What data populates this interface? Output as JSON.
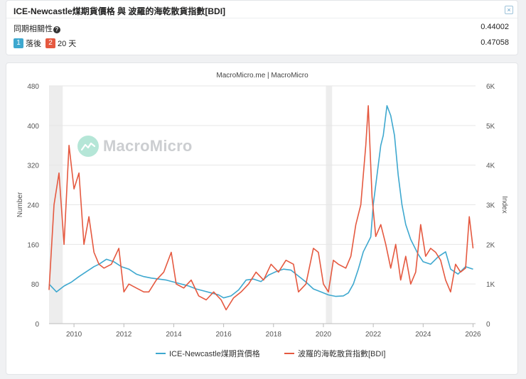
{
  "correlation_panel": {
    "title": "ICE-Newcastle煤期貨價格 與 波羅的海乾散貨指數[BDI]",
    "close_icon": "×",
    "corr_label": "同期相關性",
    "help_icon": "?",
    "corr_value": "0.44002",
    "lag_badge_1": "1",
    "lag_text_1": "落後",
    "lag_badge_2": "2",
    "lag_text_2": "20 天",
    "lag_value": "0.47058"
  },
  "chart_data": {
    "type": "line",
    "title": "MacroMicro.me | MacroMicro",
    "watermark": "MacroMicro",
    "ylabel": "Number",
    "y2label": "Index",
    "ylim": [
      0,
      480
    ],
    "y2lim": [
      0,
      6000
    ],
    "y_ticks": [
      "0",
      "80",
      "160",
      "240",
      "320",
      "400",
      "480"
    ],
    "y2_ticks": [
      "0",
      "1K",
      "2K",
      "3K",
      "4K",
      "5K",
      "6K"
    ],
    "x_ticks": [
      "2010",
      "2012",
      "2014",
      "2016",
      "2018",
      "2020",
      "2022",
      "2024",
      "2026"
    ],
    "xlim": [
      2009.0,
      2026.1
    ],
    "shaded_periods": [
      [
        2009.0,
        2009.55
      ],
      [
        2020.1,
        2020.35
      ]
    ],
    "colors": {
      "coal": "#3ea8cf",
      "bdi": "#e55940"
    },
    "series": [
      {
        "name": "ICE-Newcastle煤期貨價格",
        "axis": "left",
        "color": "#3ea8cf",
        "x": [
          2009.0,
          2009.3,
          2009.6,
          2009.9,
          2010.2,
          2010.5,
          2010.8,
          2011.0,
          2011.3,
          2011.6,
          2011.9,
          2012.2,
          2012.5,
          2012.8,
          2013.1,
          2013.4,
          2013.7,
          2014.0,
          2014.3,
          2014.6,
          2014.9,
          2015.2,
          2015.5,
          2015.8,
          2016.0,
          2016.3,
          2016.6,
          2016.9,
          2017.2,
          2017.5,
          2017.8,
          2018.1,
          2018.4,
          2018.7,
          2019.0,
          2019.3,
          2019.6,
          2019.9,
          2020.2,
          2020.5,
          2020.8,
          2021.0,
          2021.2,
          2021.4,
          2021.6,
          2021.75,
          2021.9,
          2022.0,
          2022.15,
          2022.3,
          2022.4,
          2022.55,
          2022.7,
          2022.85,
          2023.0,
          2023.15,
          2023.3,
          2023.5,
          2023.8,
          2024.0,
          2024.3,
          2024.6,
          2024.9,
          2025.1,
          2025.4,
          2025.7,
          2026.0
        ],
        "values": [
          80,
          64,
          76,
          84,
          95,
          105,
          115,
          120,
          130,
          125,
          115,
          110,
          100,
          95,
          92,
          90,
          88,
          84,
          80,
          76,
          70,
          66,
          62,
          58,
          52,
          56,
          68,
          88,
          90,
          85,
          98,
          105,
          110,
          108,
          96,
          84,
          70,
          64,
          58,
          55,
          56,
          62,
          80,
          110,
          145,
          160,
          175,
          240,
          300,
          360,
          380,
          440,
          420,
          380,
          300,
          240,
          200,
          170,
          140,
          125,
          120,
          135,
          145,
          110,
          100,
          115,
          110
        ]
      },
      {
        "name": "波羅的海乾散貨指數[BDI]",
        "axis": "right",
        "color": "#e55940",
        "x": [
          2009.0,
          2009.2,
          2009.4,
          2009.6,
          2009.8,
          2010.0,
          2010.2,
          2010.4,
          2010.6,
          2010.8,
          2011.0,
          2011.2,
          2011.5,
          2011.8,
          2012.0,
          2012.2,
          2012.5,
          2012.8,
          2013.0,
          2013.3,
          2013.6,
          2013.9,
          2014.1,
          2014.4,
          2014.7,
          2015.0,
          2015.3,
          2015.6,
          2015.9,
          2016.1,
          2016.4,
          2016.7,
          2017.0,
          2017.3,
          2017.6,
          2017.9,
          2018.2,
          2018.5,
          2018.8,
          2019.0,
          2019.3,
          2019.6,
          2019.8,
          2020.0,
          2020.2,
          2020.4,
          2020.6,
          2020.9,
          2021.1,
          2021.3,
          2021.5,
          2021.7,
          2021.8,
          2021.95,
          2022.1,
          2022.3,
          2022.5,
          2022.7,
          2022.9,
          2023.1,
          2023.3,
          2023.5,
          2023.7,
          2023.9,
          2024.1,
          2024.3,
          2024.5,
          2024.7,
          2024.9,
          2025.1,
          2025.3,
          2025.5,
          2025.7,
          2025.85,
          2026.0
        ],
        "values": [
          850,
          3000,
          3800,
          2000,
          4500,
          3400,
          3800,
          2000,
          2700,
          1800,
          1500,
          1400,
          1500,
          1900,
          800,
          1000,
          900,
          800,
          800,
          1100,
          1300,
          1800,
          1000,
          900,
          1100,
          700,
          600,
          800,
          600,
          350,
          650,
          800,
          1000,
          1300,
          1100,
          1500,
          1300,
          1600,
          1500,
          800,
          1000,
          1900,
          1800,
          1000,
          800,
          1600,
          1500,
          1400,
          1700,
          2500,
          3000,
          4500,
          5500,
          3200,
          2200,
          2500,
          2000,
          1400,
          2000,
          1100,
          1700,
          1000,
          1300,
          2500,
          1700,
          1900,
          1800,
          1600,
          1100,
          800,
          1500,
          1300,
          1400,
          2700,
          1900
        ]
      }
    ]
  }
}
